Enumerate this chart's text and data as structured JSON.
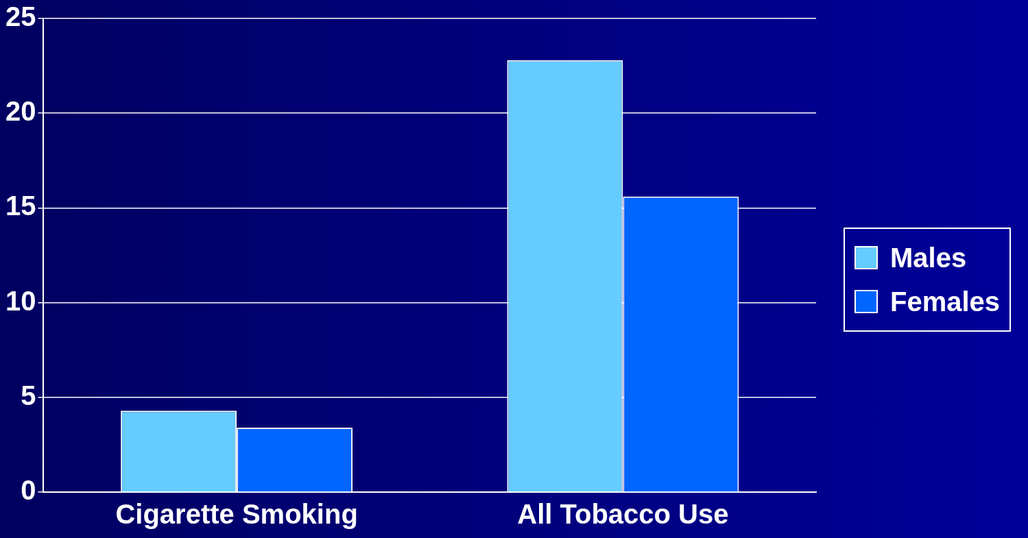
{
  "chart_data": {
    "type": "bar",
    "categories": [
      "Cigarette Smoking",
      "All Tobacco Use"
    ],
    "series": [
      {
        "name": "Males",
        "color": "#66ccff",
        "values": [
          4.3,
          22.8
        ]
      },
      {
        "name": "Females",
        "color": "#0066ff",
        "values": [
          3.4,
          15.6
        ]
      }
    ],
    "ylim": [
      0,
      25
    ],
    "yticks": [
      0,
      5,
      10,
      15,
      20,
      25
    ],
    "grid": "y",
    "legend": "right"
  }
}
